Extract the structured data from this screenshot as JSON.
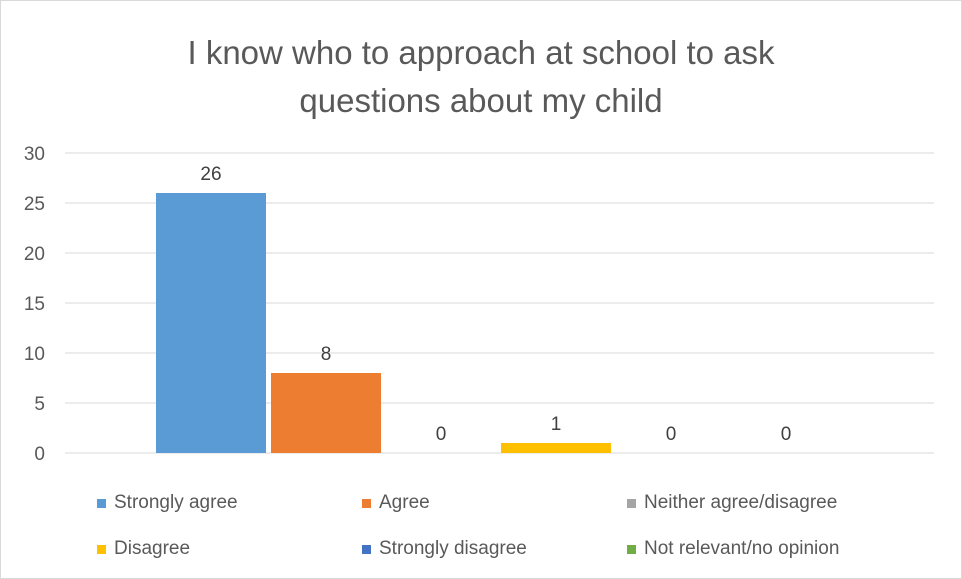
{
  "chart_data": {
    "type": "bar",
    "title_line1": "I know who to approach at school to ask",
    "title_line2": "questions about my child",
    "categories": [
      "Strongly agree",
      "Agree",
      "Neither agree/disagree",
      "Disagree",
      "Strongly disagree",
      "Not relevant/no opinion"
    ],
    "values": [
      26,
      8,
      0,
      1,
      0,
      0
    ],
    "colors": [
      "#5b9bd5",
      "#ed7d31",
      "#a5a5a5",
      "#ffc000",
      "#4472c4",
      "#70ad47"
    ],
    "ylim": [
      0,
      30
    ],
    "yticks": [
      "0",
      "5",
      "10",
      "15",
      "20",
      "25",
      "30"
    ],
    "data_labels": [
      "26",
      "8",
      "0",
      "1",
      "0",
      "0"
    ],
    "grid": true,
    "legend_position": "bottom"
  }
}
